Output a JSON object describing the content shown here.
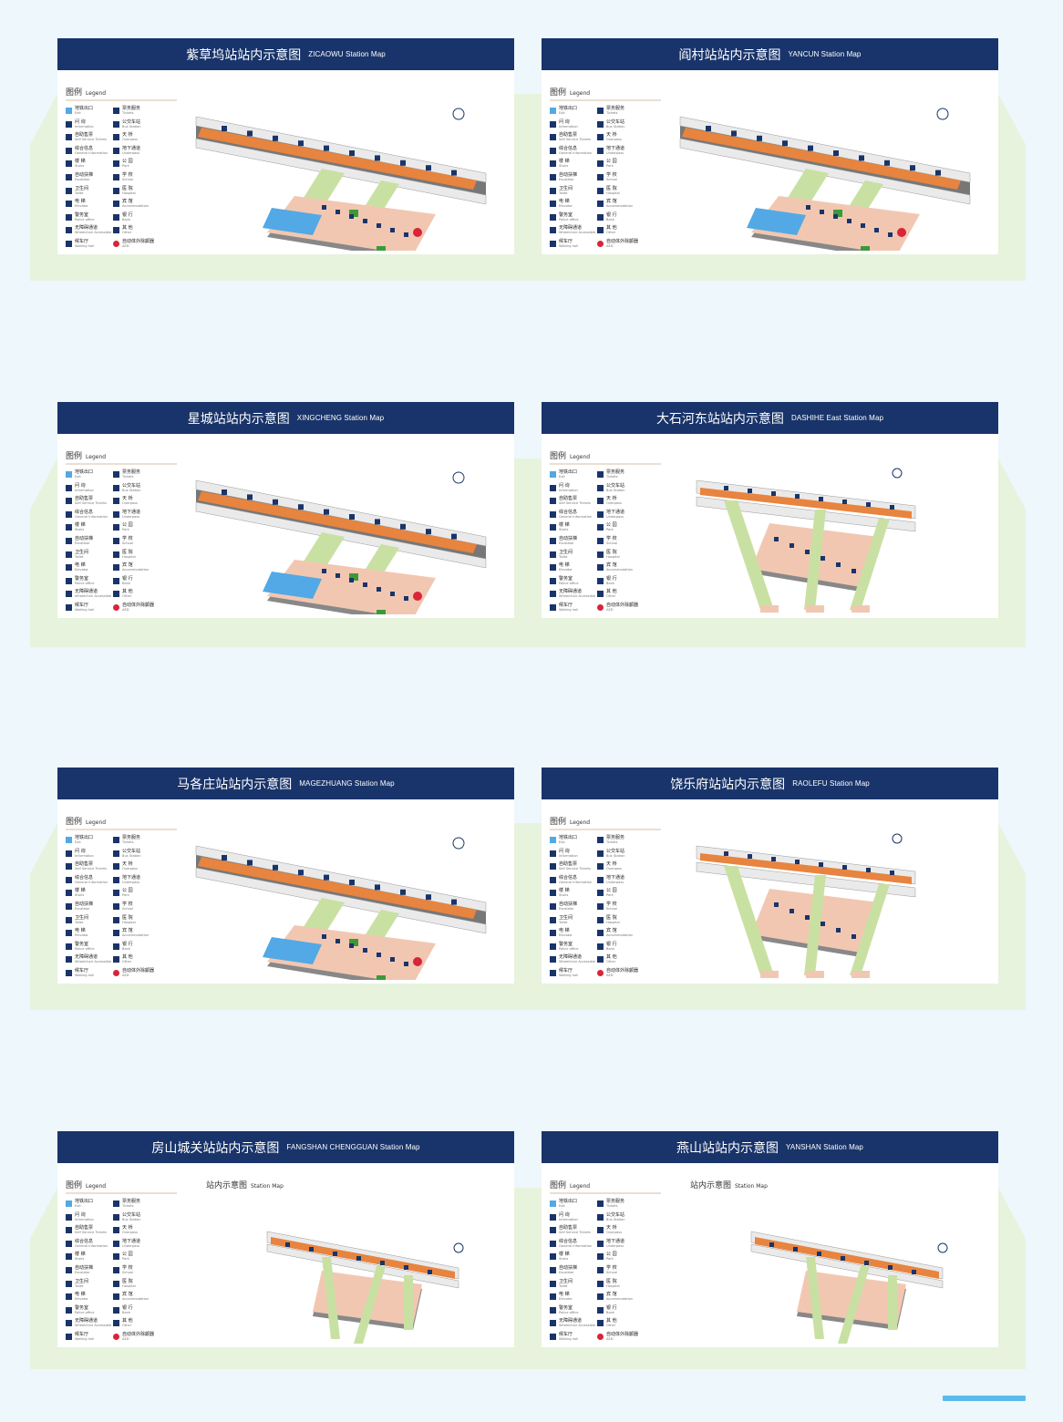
{
  "colors": {
    "header": "#19346a",
    "green_band": "#e7f3dd",
    "page_bg": "#edf7fc",
    "platform": "#e7843f",
    "passage": "#c9e0a3",
    "concourse": "#f2c7b1",
    "exit": "#52a9e5"
  },
  "legend": {
    "title_cn": "图例",
    "title_en": "Legend",
    "items": [
      {
        "cn": "地铁出口",
        "en": "Exit",
        "icon": "exit-icon"
      },
      {
        "cn": "票务服务",
        "en": "Tickets",
        "icon": "ticket-icon"
      },
      {
        "cn": "问 询",
        "en": "Information",
        "icon": "question-icon"
      },
      {
        "cn": "公交车站",
        "en": "Bus Station",
        "icon": "bus-icon"
      },
      {
        "cn": "自助售票",
        "en": "Self Service Tickets",
        "icon": "ticket-machine-icon"
      },
      {
        "cn": "天 桥",
        "en": "Overpass",
        "icon": "overpass-icon"
      },
      {
        "cn": "综合信息",
        "en": "General Information",
        "icon": "info-icon"
      },
      {
        "cn": "地下通道",
        "en": "Underpass",
        "icon": "underpass-icon"
      },
      {
        "cn": "楼 梯",
        "en": "Stairs",
        "icon": "stairs-icon"
      },
      {
        "cn": "公 园",
        "en": "Park",
        "icon": "park-icon"
      },
      {
        "cn": "自动扶梯",
        "en": "Escalator",
        "icon": "escalator-icon"
      },
      {
        "cn": "学 校",
        "en": "School",
        "icon": "school-icon"
      },
      {
        "cn": "卫生间",
        "en": "Toilet",
        "icon": "toilet-icon"
      },
      {
        "cn": "医 院",
        "en": "Hospital",
        "icon": "hospital-icon"
      },
      {
        "cn": "电 梯",
        "en": "Elevator",
        "icon": "elevator-icon"
      },
      {
        "cn": "宾 馆",
        "en": "Accommodation",
        "icon": "hotel-icon"
      },
      {
        "cn": "警务室",
        "en": "Police office",
        "icon": "police-icon"
      },
      {
        "cn": "银 行",
        "en": "Bank",
        "icon": "bank-icon"
      },
      {
        "cn": "无障碍通道",
        "en": "Wheelchair Accessible",
        "icon": "wheelchair-icon"
      },
      {
        "cn": "其 他",
        "en": "Other",
        "icon": "other-icon"
      },
      {
        "cn": "候车厅",
        "en": "Waiting hall",
        "icon": "waiting-icon"
      },
      {
        "cn": "自动体外除颤器",
        "en": "AED",
        "icon": "aed-icon"
      }
    ]
  },
  "submap": {
    "cn": "站内示意图",
    "en": "Station Map"
  },
  "maps": [
    {
      "cn": "紫草坞站站内示意图",
      "en": "ZICAOWU Station Map"
    },
    {
      "cn": "阎村站站内示意图",
      "en": "YANCUN Station Map"
    },
    {
      "cn": "星城站站内示意图",
      "en": "XINGCHENG Station Map"
    },
    {
      "cn": "大石河东站站内示意图",
      "en": "DASHIHE East Station Map"
    },
    {
      "cn": "马各庄站站内示意图",
      "en": "MAGEZHUANG Station Map"
    },
    {
      "cn": "饶乐府站站内示意图",
      "en": "RAOLEFU Station Map"
    },
    {
      "cn": "房山城关站站内示意图",
      "en": "FANGSHAN CHENGGUAN Station Map"
    },
    {
      "cn": "燕山站站内示意图",
      "en": "YANSHAN Station Map"
    }
  ]
}
